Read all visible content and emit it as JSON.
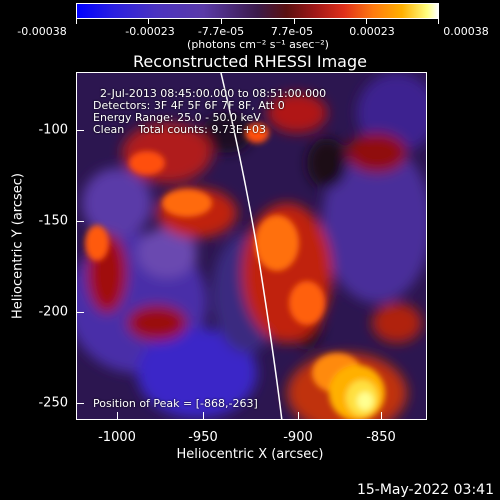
{
  "colorbar": {
    "tick_labels": [
      "-0.00038",
      "-0.00023",
      "-7.7e-05",
      "7.7e-05",
      "0.00023",
      "0.00038"
    ],
    "units": "(photons cm⁻² s⁻¹ asec⁻²)"
  },
  "title": "Reconstructed RHESSI Image",
  "info": {
    "time_range": "2-Jul-2013 08:45:00.000 to 08:51:00.000",
    "detectors": "Detectors: 3F 4F 5F 6F 7F 8F, Att 0",
    "energy": "Energy Range: 25.0 - 50.0 keV",
    "algorithm": "Clean    Total counts: 9.73E+03",
    "peak": "Position of Peak = [-868,-263]"
  },
  "axes": {
    "xlabel": "Heliocentric X (arcsec)",
    "ylabel": "Heliocentric Y (arcsec)",
    "xticks": [
      "-1000",
      "-950",
      "-900",
      "-850"
    ],
    "yticks": [
      "-100",
      "-150",
      "-200",
      "-250"
    ]
  },
  "footer": "15-May-2022 03:41",
  "colors": {
    "background": "#000000",
    "foreground": "#ffffff"
  }
}
